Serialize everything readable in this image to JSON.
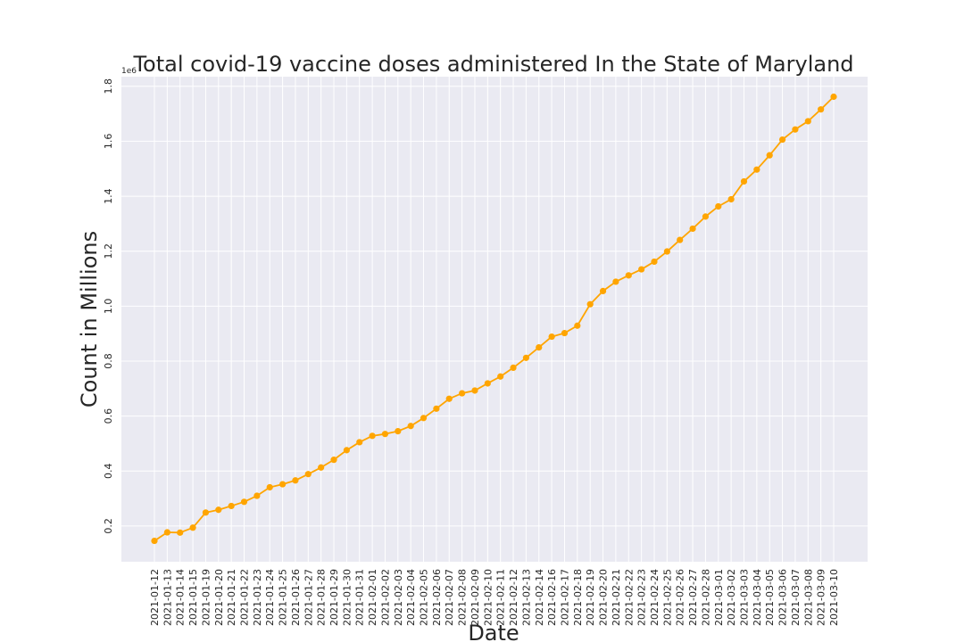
{
  "chart_data": {
    "type": "line",
    "title": "Total covid-19 vaccine doses administered In the State of Maryland",
    "xlabel": "Date",
    "ylabel": "Count in Millions",
    "y_offset_label": "1e6",
    "ylim": [
      70000,
      1835000
    ],
    "yticks": [
      200000,
      400000,
      600000,
      800000,
      1000000,
      1200000,
      1400000,
      1600000,
      1800000
    ],
    "ytick_labels": [
      "0.2",
      "0.4",
      "0.6",
      "0.8",
      "1.0",
      "1.2",
      "1.4",
      "1.6",
      "1.8"
    ],
    "grid": true,
    "x_tick_rotation": "vertical",
    "categories": [
      "2021-01-12",
      "2021-01-13",
      "2021-01-14",
      "2021-01-15",
      "2021-01-19",
      "2021-01-20",
      "2021-01-21",
      "2021-01-22",
      "2021-01-23",
      "2021-01-24",
      "2021-01-25",
      "2021-01-26",
      "2021-01-27",
      "2021-01-28",
      "2021-01-29",
      "2021-01-30",
      "2021-01-31",
      "2021-02-01",
      "2021-02-02",
      "2021-02-03",
      "2021-02-04",
      "2021-02-05",
      "2021-02-06",
      "2021-02-07",
      "2021-02-08",
      "2021-02-09",
      "2021-02-10",
      "2021-02-11",
      "2021-02-12",
      "2021-02-13",
      "2021-02-14",
      "2021-02-16",
      "2021-02-17",
      "2021-02-18",
      "2021-02-19",
      "2021-02-20",
      "2021-02-21",
      "2021-02-22",
      "2021-02-23",
      "2021-02-24",
      "2021-02-25",
      "2021-02-26",
      "2021-02-27",
      "2021-02-28",
      "2021-03-01",
      "2021-03-02",
      "2021-03-03",
      "2021-03-04",
      "2021-03-05",
      "2021-03-06",
      "2021-03-07",
      "2021-03-08",
      "2021-03-09",
      "2021-03-10"
    ],
    "series": [
      {
        "color": "#ffa500",
        "values": [
          146000,
          177000,
          176000,
          194000,
          249000,
          259000,
          273000,
          288000,
          310000,
          341000,
          352000,
          366000,
          389000,
          413000,
          441000,
          476000,
          505000,
          528000,
          535000,
          545000,
          564000,
          593000,
          627000,
          663000,
          683000,
          693000,
          719000,
          744000,
          776000,
          812000,
          850000,
          889000,
          902000,
          929000,
          1007000,
          1055000,
          1089000,
          1112000,
          1134000,
          1162000,
          1199000,
          1241000,
          1282000,
          1326000,
          1363000,
          1389000,
          1454000,
          1497000,
          1549000,
          1606000,
          1643000,
          1673000,
          1716000,
          1762000
        ]
      }
    ]
  },
  "style": {
    "plot_bg": "#eaeaf2",
    "grid_color": "#ffffff",
    "line_color": "#ffa500"
  }
}
